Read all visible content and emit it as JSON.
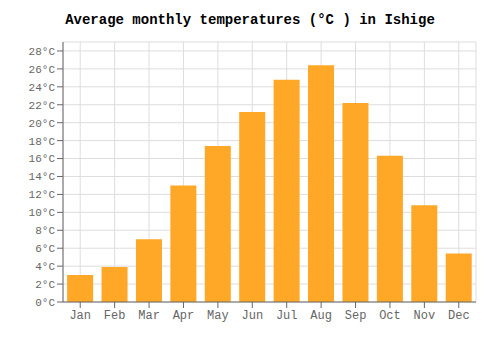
{
  "chart_data": {
    "type": "bar",
    "title": "Average monthly temperatures (°C ) in Ishige",
    "categories": [
      "Jan",
      "Feb",
      "Mar",
      "Apr",
      "May",
      "Jun",
      "Jul",
      "Aug",
      "Sep",
      "Oct",
      "Nov",
      "Dec"
    ],
    "values": [
      3.0,
      3.9,
      7.0,
      13.0,
      17.4,
      21.2,
      24.8,
      26.4,
      22.2,
      16.3,
      10.8,
      5.4
    ],
    "color": "#FFA726",
    "ylim": [
      0,
      29
    ],
    "yticks": [
      {
        "value": 0,
        "label": "0°C"
      },
      {
        "value": 2,
        "label": "2°C"
      },
      {
        "value": 4,
        "label": "4°C"
      },
      {
        "value": 6,
        "label": "6°C"
      },
      {
        "value": 8,
        "label": "8°C"
      },
      {
        "value": 10,
        "label": "10°C"
      },
      {
        "value": 12,
        "label": "12°C"
      },
      {
        "value": 14,
        "label": "14°C"
      },
      {
        "value": 16,
        "label": "16°C"
      },
      {
        "value": 18,
        "label": "18°C"
      },
      {
        "value": 20,
        "label": "20°C"
      },
      {
        "value": 22,
        "label": "22°C"
      },
      {
        "value": 24,
        "label": "24°C"
      },
      {
        "value": 26,
        "label": "26°C"
      },
      {
        "value": 28,
        "label": "28°C"
      }
    ],
    "grid": true
  }
}
